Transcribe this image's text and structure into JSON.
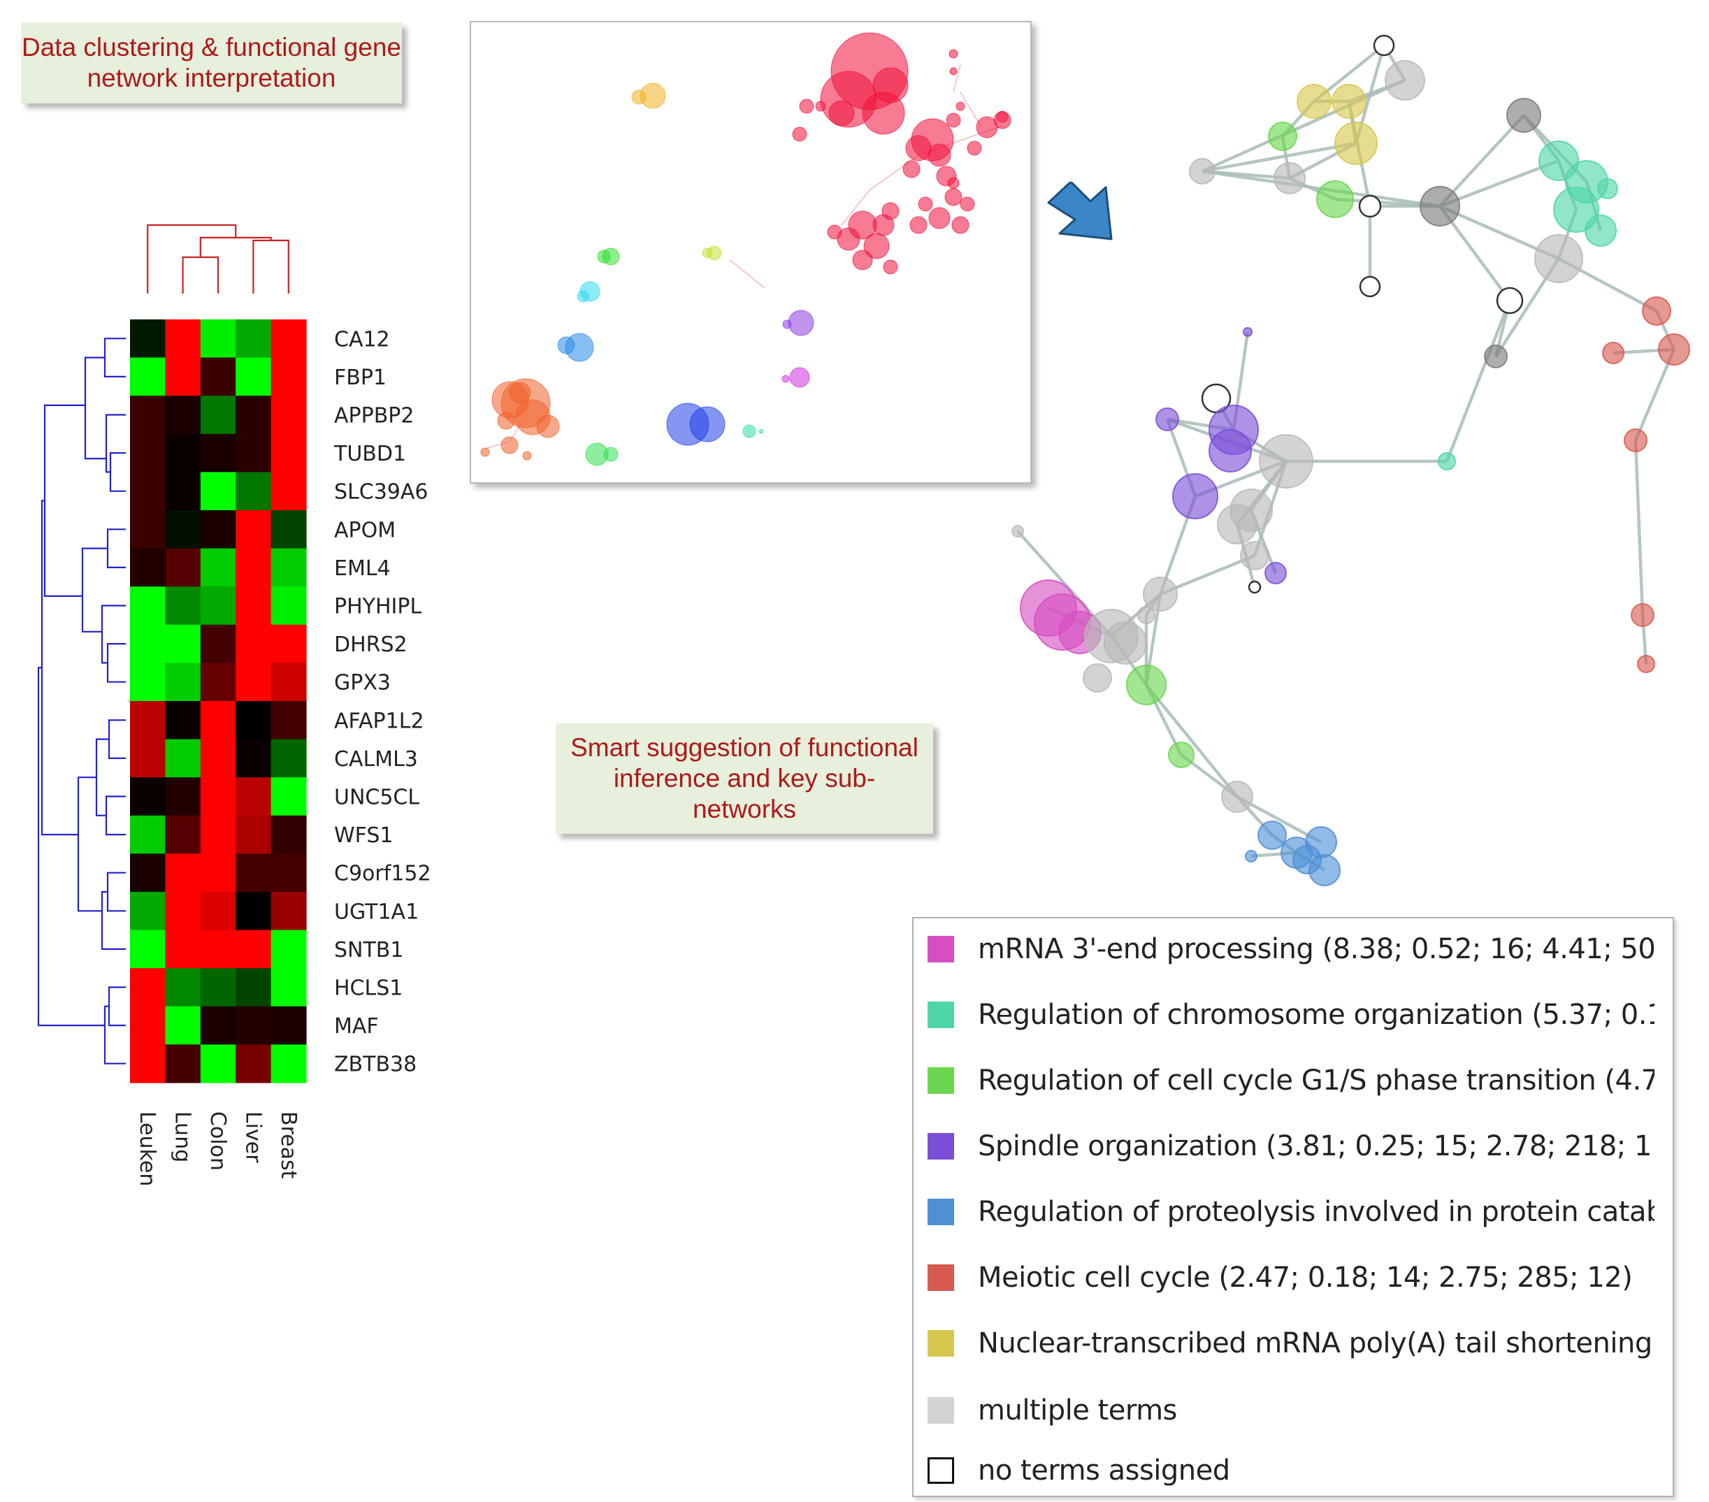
{
  "callouts": {
    "clustering": "Data clustering & functional gene network interpretation",
    "suggestion": "Smart suggestion of functional inference and key sub-networks"
  },
  "heatmap": {
    "genes": [
      "CA12",
      "FBP1",
      "APPBP2",
      "TUBD1",
      "SLC39A6",
      "APOM",
      "EML4",
      "PHYHIPL",
      "DHRS2",
      "GPX3",
      "AFAP1L2",
      "CALML3",
      "UNC5CL",
      "WFS1",
      "C9orf152",
      "UGT1A1",
      "SNTB1",
      "HCLS1",
      "MAF",
      "ZBTB38"
    ],
    "tissues": [
      "Leuken",
      "Lung",
      "Colon",
      "Liver",
      "Breast"
    ],
    "cell_colors": [
      [
        "#001a00",
        "#ff0000",
        "#00ee00",
        "#00aa00",
        "#ff0000"
      ],
      [
        "#00ff00",
        "#ff0000",
        "#3a0000",
        "#00ff00",
        "#ff0000"
      ],
      [
        "#3a0000",
        "#1a0000",
        "#007700",
        "#2a0000",
        "#ff0000"
      ],
      [
        "#3a0000",
        "#0a0000",
        "#1a0000",
        "#2a0000",
        "#ff0000"
      ],
      [
        "#3a0000",
        "#0a0000",
        "#00ff00",
        "#007700",
        "#ff0000"
      ],
      [
        "#3a0000",
        "#001000",
        "#1a0000",
        "#ff0000",
        "#004400"
      ],
      [
        "#220000",
        "#550000",
        "#00cc00",
        "#ff0000",
        "#00cc00"
      ],
      [
        "#00ff00",
        "#008800",
        "#00aa00",
        "#ff0000",
        "#00ee00"
      ],
      [
        "#00ff00",
        "#00ff00",
        "#440000",
        "#ff0000",
        "#ff0000"
      ],
      [
        "#00ff00",
        "#00cc00",
        "#660000",
        "#ff0000",
        "#cc0000"
      ],
      [
        "#bb0000",
        "#0a0000",
        "#ff0000",
        "#000000",
        "#440000"
      ],
      [
        "#bb0000",
        "#00cc00",
        "#ff0000",
        "#0a0000",
        "#006600"
      ],
      [
        "#0a0000",
        "#220000",
        "#ff0000",
        "#bb0000",
        "#00ff00"
      ],
      [
        "#00cc00",
        "#550000",
        "#ff0000",
        "#aa0000",
        "#330000"
      ],
      [
        "#1a0000",
        "#ff0000",
        "#ff0000",
        "#440000",
        "#440000"
      ],
      [
        "#00aa00",
        "#ff0000",
        "#dd0000",
        "#000000",
        "#990000"
      ],
      [
        "#00ff00",
        "#ff0000",
        "#ff0000",
        "#ff0000",
        "#00ff00"
      ],
      [
        "#ff0000",
        "#008800",
        "#006600",
        "#004400",
        "#00ff00"
      ],
      [
        "#ff0000",
        "#00ff00",
        "#1a0000",
        "#220000",
        "#1a0000"
      ],
      [
        "#ff0000",
        "#440000",
        "#00ff00",
        "#770000",
        "#00ff00"
      ]
    ],
    "row_tree_color": "#2222cc",
    "col_tree_color": "#cc2222"
  },
  "legend": {
    "items": [
      {
        "color": "#d64fc2",
        "label": "mRNA 3'-end processing (8.38; 0.52; 16; 4.41; 50"
      },
      {
        "color": "#4fd6a6",
        "label": "Regulation of chromosome organization (5.37; 0.1"
      },
      {
        "color": "#6ad64f",
        "label": "Regulation of cell cycle G1/S phase transition (4.7"
      },
      {
        "color": "#7a4fd6",
        "label": "Spindle organization (3.81; 0.25; 15; 2.78; 218; 1"
      },
      {
        "color": "#4f8fd6",
        "label": "Regulation of proteolysis involved in protein catab"
      },
      {
        "color": "#d65a4f",
        "label": "Meiotic cell cycle (2.47; 0.18; 14; 2.75; 285; 12)"
      },
      {
        "color": "#d6c84f",
        "label": "Nuclear-transcribed mRNA poly(A) tail shortening"
      },
      {
        "color": "#d3d3d3",
        "label": "multiple terms"
      },
      {
        "color": "#ffffff",
        "label": "no terms assigned"
      }
    ]
  },
  "colors": {
    "callout_bg": "#e6f0dc",
    "callout_text": "#b01818",
    "arrow": "#3a86c8",
    "edge": "#a8bdb8"
  }
}
